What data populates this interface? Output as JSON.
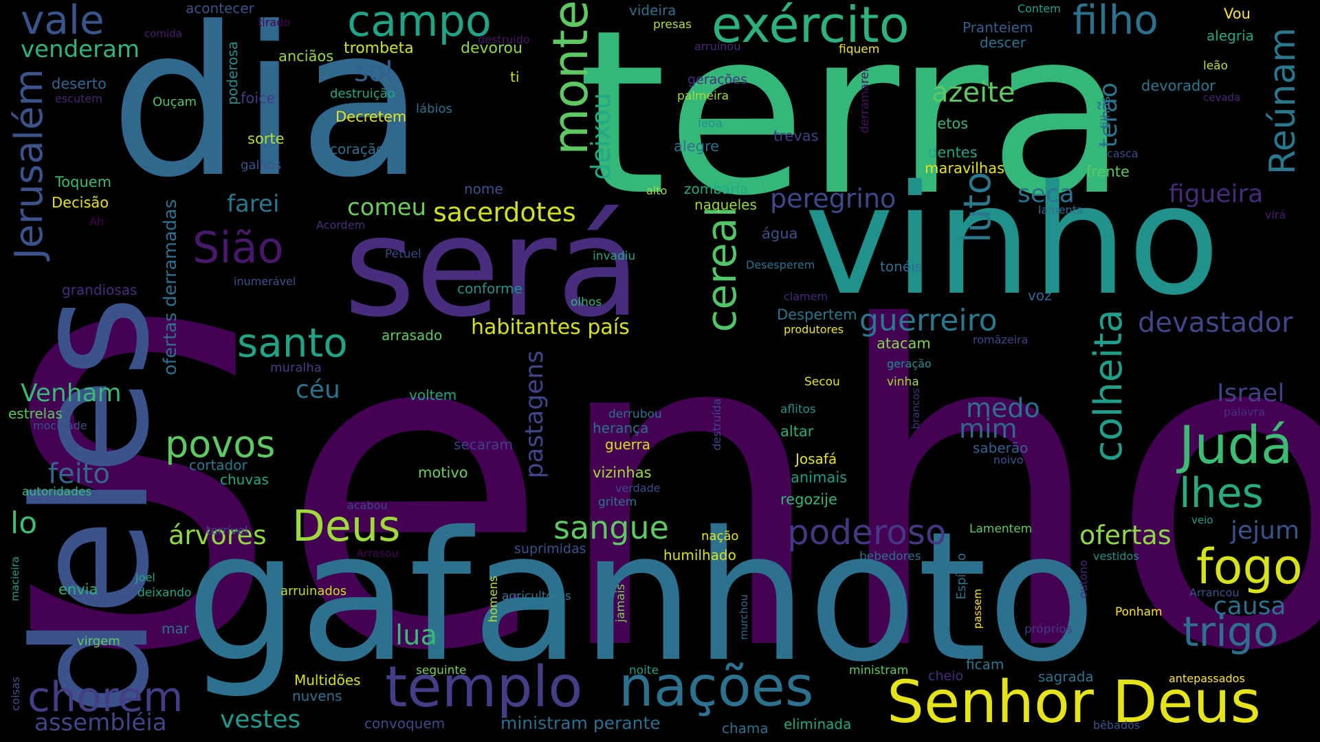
{
  "background": "#000000",
  "palette": {
    "purple": "#440154",
    "indigo": "#472d7b",
    "violet": "#3b528b",
    "blue": "#2c728e",
    "teal": "#21918c",
    "green_teal": "#28ae80",
    "green": "#5ec962",
    "lime": "#addc30",
    "yellow": "#fde725"
  },
  "words": [
    {
      "text": "Senhor",
      "color": "#440154"
    },
    {
      "text": "terra",
      "color": "#35b779"
    },
    {
      "text": "dia",
      "color": "#31688e"
    },
    {
      "text": "gafanhoto",
      "color": "#2c728e"
    },
    {
      "text": "vinho",
      "color": "#21918c"
    },
    {
      "text": "será",
      "color": "#472d7b"
    },
    {
      "text": "deles",
      "color": "#3b528b"
    },
    {
      "text": "Senhor Deus",
      "color": "#e5e419"
    },
    {
      "text": "templo",
      "color": "#433e85"
    },
    {
      "text": "nações",
      "color": "#2c728e"
    },
    {
      "text": "exército",
      "color": "#2db27d"
    },
    {
      "text": "campo",
      "color": "#20a486"
    },
    {
      "text": "monte",
      "color": "#5ec962"
    },
    {
      "text": "filho",
      "color": "#2c728e"
    },
    {
      "text": "vale",
      "color": "#39568c"
    },
    {
      "text": "Jerusalém",
      "color": "#3b528b"
    },
    {
      "text": "Sião",
      "color": "#48186a"
    },
    {
      "text": "santo",
      "color": "#20a486"
    },
    {
      "text": "cereal",
      "color": "#52c569"
    },
    {
      "text": "luto",
      "color": "#2a788e"
    },
    {
      "text": "colheita",
      "color": "#1f9e89"
    },
    {
      "text": "Reúnam",
      "color": "#2a788e"
    },
    {
      "text": "Judá",
      "color": "#3dbc74"
    },
    {
      "text": "lhes",
      "color": "#25ac82"
    },
    {
      "text": "fogo",
      "color": "#d8e219"
    },
    {
      "text": "trigo",
      "color": "#2e6f8e"
    },
    {
      "text": "chorem",
      "color": "#433e85"
    },
    {
      "text": "Deus",
      "color": "#a0da39"
    },
    {
      "text": "poderoso",
      "color": "#453781"
    },
    {
      "text": "guerreiro",
      "color": "#2a788e"
    },
    {
      "text": "sangue",
      "color": "#5ec962"
    },
    {
      "text": "povos",
      "color": "#5ec962"
    },
    {
      "text": "azeite",
      "color": "#5ec962"
    },
    {
      "text": "peregrino",
      "color": "#3e4989"
    },
    {
      "text": "sacerdotes",
      "color": "#d0e11c"
    },
    {
      "text": "devastador",
      "color": "#404688"
    },
    {
      "text": "figueira",
      "color": "#472a7a"
    },
    {
      "text": "Israel",
      "color": "#424186"
    },
    {
      "text": "medo",
      "color": "#2e6e8e"
    },
    {
      "text": "mim",
      "color": "#31688e"
    },
    {
      "text": "ofertas",
      "color": "#8ed645"
    },
    {
      "text": "jejum",
      "color": "#3b528b"
    },
    {
      "text": "causa",
      "color": "#2d708e"
    },
    {
      "text": "farei",
      "color": "#2a788e"
    },
    {
      "text": "comeu",
      "color": "#6ccd5a"
    },
    {
      "text": "seca",
      "color": "#2c738e"
    },
    {
      "text": "Venham",
      "color": "#38b977"
    },
    {
      "text": "feito",
      "color": "#31688e"
    },
    {
      "text": "lo",
      "color": "#3dbc74"
    },
    {
      "text": "árvores",
      "color": "#90d743"
    },
    {
      "text": "sol",
      "color": "#33638d"
    },
    {
      "text": "céu",
      "color": "#2c738e"
    },
    {
      "text": "lua",
      "color": "#3aba76"
    },
    {
      "text": "deixou",
      "color": "#22a884"
    },
    {
      "text": "terão",
      "color": "#2a788e"
    },
    {
      "text": "pastagens",
      "color": "#414487"
    },
    {
      "text": "vestes",
      "color": "#1f9a8a"
    },
    {
      "text": "assembléia",
      "color": "#3f4788"
    },
    {
      "text": "venderam",
      "color": "#2fb47c"
    },
    {
      "text": "habitantes país",
      "color": "#d8e219"
    },
    {
      "text": "ofertas derramadas",
      "color": "#2d708e"
    },
    {
      "text": "acontecer",
      "color": "#3b528b"
    },
    {
      "text": "anciãos",
      "color": "#9bd93c"
    },
    {
      "text": "trombeta",
      "color": "#d2e21b"
    },
    {
      "text": "devorou",
      "color": "#8ed645"
    },
    {
      "text": "deserto",
      "color": "#31688e"
    },
    {
      "text": "poderosa",
      "color": "#21918c"
    },
    {
      "text": "foice",
      "color": "#443983"
    },
    {
      "text": "destruição",
      "color": "#22a884"
    },
    {
      "text": "lábios",
      "color": "#2c728e"
    },
    {
      "text": "Decretem",
      "color": "#e7e419"
    },
    {
      "text": "sorte",
      "color": "#b8de29"
    },
    {
      "text": "coração",
      "color": "#2d708e"
    },
    {
      "text": "galhos",
      "color": "#39568c"
    },
    {
      "text": "Toquem",
      "color": "#3aba76"
    },
    {
      "text": "Decisão",
      "color": "#e5e419"
    },
    {
      "text": "Ouçam",
      "color": "#50c46a"
    },
    {
      "text": "escutem",
      "color": "#482475"
    },
    {
      "text": "comida",
      "color": "#481f70"
    },
    {
      "text": "tirado",
      "color": "#440154"
    },
    {
      "text": "ti",
      "color": "#cde11d"
    },
    {
      "text": "destruído",
      "color": "#471365"
    },
    {
      "text": "videira",
      "color": "#2c728e"
    },
    {
      "text": "presas",
      "color": "#b5de2b"
    },
    {
      "text": "arruinou",
      "color": "#482878"
    },
    {
      "text": "Pranteiem",
      "color": "#35608d"
    },
    {
      "text": "descer",
      "color": "#2c728e"
    },
    {
      "text": "fiquem",
      "color": "#f1e51d"
    },
    {
      "text": "Contem",
      "color": "#1fa088"
    },
    {
      "text": "Vou",
      "color": "#fde725"
    },
    {
      "text": "alegria",
      "color": "#22a884"
    },
    {
      "text": "leão",
      "color": "#c0df25"
    },
    {
      "text": "cevada",
      "color": "#482878"
    },
    {
      "text": "devorador",
      "color": "#2a788e"
    },
    {
      "text": "gerações",
      "color": "#46307e"
    },
    {
      "text": "palmeira",
      "color": "#a5db36"
    },
    {
      "text": "derramarei",
      "color": "#471063"
    },
    {
      "text": "filhas",
      "color": "#31688e"
    },
    {
      "text": "leoa",
      "color": "#21918c"
    },
    {
      "text": "trevas",
      "color": "#433e85"
    },
    {
      "text": "alegre",
      "color": "#2c728e"
    },
    {
      "text": "netos",
      "color": "#35b779"
    },
    {
      "text": "dentes",
      "color": "#20a486"
    },
    {
      "text": "maravilhas",
      "color": "#e5e419"
    },
    {
      "text": "casca",
      "color": "#3e4a89"
    },
    {
      "text": "frente",
      "color": "#5ec962"
    },
    {
      "text": "alto",
      "color": "#a8db34"
    },
    {
      "text": "zombaria",
      "color": "#22a884"
    },
    {
      "text": "naqueles",
      "color": "#9dd93b"
    },
    {
      "text": "nome",
      "color": "#3b528b"
    },
    {
      "text": "lamenta",
      "color": "#2c728e"
    },
    {
      "text": "virá",
      "color": "#481f70"
    },
    {
      "text": "Ah",
      "color": "#440154"
    },
    {
      "text": "Acordem",
      "color": "#472d7b"
    },
    {
      "text": "Petuel",
      "color": "#3e4a89"
    },
    {
      "text": "invadiu",
      "color": "#20a486"
    },
    {
      "text": "água",
      "color": "#3b528b"
    },
    {
      "text": "Desesperem",
      "color": "#2c728e"
    },
    {
      "text": "tonéis",
      "color": "#2e6e8e"
    },
    {
      "text": "inumerável",
      "color": "#3b528b"
    },
    {
      "text": "grandiosas",
      "color": "#472d7b"
    },
    {
      "text": "conforme",
      "color": "#21918c"
    },
    {
      "text": "olhos",
      "color": "#35b779"
    },
    {
      "text": "clamem",
      "color": "#472a7a"
    },
    {
      "text": "voz",
      "color": "#31688e"
    },
    {
      "text": "Despertem",
      "color": "#2a788e"
    },
    {
      "text": "produtores",
      "color": "#f1e51d"
    },
    {
      "text": "atacam",
      "color": "#86d549"
    },
    {
      "text": "romãzeira",
      "color": "#414487"
    },
    {
      "text": "arrasado",
      "color": "#5ec962"
    },
    {
      "text": "muralha",
      "color": "#433e85"
    },
    {
      "text": "geração",
      "color": "#21918c"
    },
    {
      "text": "Secou",
      "color": "#e5e419"
    },
    {
      "text": "vinha",
      "color": "#aadc32"
    },
    {
      "text": "brancos",
      "color": "#46307e"
    },
    {
      "text": "palavra",
      "color": "#46327e"
    },
    {
      "text": "estrelas",
      "color": "#5ec962"
    },
    {
      "text": "mocidade",
      "color": "#3b528b"
    },
    {
      "text": "voltem",
      "color": "#20a486"
    },
    {
      "text": "derrubou",
      "color": "#2c728e"
    },
    {
      "text": "destruída",
      "color": "#3e4989"
    },
    {
      "text": "aflitos",
      "color": "#21918c"
    },
    {
      "text": "herança",
      "color": "#2c728e"
    },
    {
      "text": "secaram",
      "color": "#424186"
    },
    {
      "text": "guerra",
      "color": "#d2e21b"
    },
    {
      "text": "altar",
      "color": "#25ac82"
    },
    {
      "text": "saberão",
      "color": "#35608d"
    },
    {
      "text": "noivo",
      "color": "#3b528b"
    },
    {
      "text": "cortador",
      "color": "#2a788e"
    },
    {
      "text": "chuvas",
      "color": "#22a884"
    },
    {
      "text": "motivo",
      "color": "#6ccd5a"
    },
    {
      "text": "vizinhas",
      "color": "#a5db36"
    },
    {
      "text": "Josafá",
      "color": "#e7e419"
    },
    {
      "text": "animais",
      "color": "#1f9e89"
    },
    {
      "text": "verdade",
      "color": "#3e4a89"
    },
    {
      "text": "autoridades",
      "color": "#3aba76"
    },
    {
      "text": "acabou",
      "color": "#3e4989"
    },
    {
      "text": "gritem",
      "color": "#2a788e"
    },
    {
      "text": "regozije",
      "color": "#35b779"
    },
    {
      "text": "veio",
      "color": "#1f9e89"
    },
    {
      "text": "suprimidas",
      "color": "#3b528b"
    },
    {
      "text": "nação",
      "color": "#e5e419"
    },
    {
      "text": "Lamentem",
      "color": "#5ec962"
    },
    {
      "text": "terrível",
      "color": "#3e4989"
    },
    {
      "text": "Arrasou",
      "color": "#440154"
    },
    {
      "text": "humilhado",
      "color": "#d8e219"
    },
    {
      "text": "bebedores",
      "color": "#2c728e"
    },
    {
      "text": "vestidos",
      "color": "#21918c"
    },
    {
      "text": "envia",
      "color": "#2fb47c"
    },
    {
      "text": "Joel",
      "color": "#22a884"
    },
    {
      "text": "deixando",
      "color": "#20a486"
    },
    {
      "text": "arruinados",
      "color": "#c8e020"
    },
    {
      "text": "agricultores",
      "color": "#2a788e"
    },
    {
      "text": "Espírito",
      "color": "#2c728e"
    },
    {
      "text": "outono",
      "color": "#472a7a"
    },
    {
      "text": "Arrancou",
      "color": "#3b528b"
    },
    {
      "text": "macieira",
      "color": "#1f9e89"
    },
    {
      "text": "mar",
      "color": "#2c728e"
    },
    {
      "text": "homens",
      "color": "#b8de29"
    },
    {
      "text": "jamais",
      "color": "#7ad151"
    },
    {
      "text": "murchou",
      "color": "#31688e"
    },
    {
      "text": "passem",
      "color": "#fde725"
    },
    {
      "text": "Ponham",
      "color": "#fde725"
    },
    {
      "text": "próprios",
      "color": "#453882"
    },
    {
      "text": "virgem",
      "color": "#5ec962"
    },
    {
      "text": "coisas",
      "color": "#3b528b"
    },
    {
      "text": "Multidões",
      "color": "#d8e219"
    },
    {
      "text": "nuvens",
      "color": "#2c728e"
    },
    {
      "text": "seguinte",
      "color": "#7ad151"
    },
    {
      "text": "noite",
      "color": "#1f9e89"
    },
    {
      "text": "ministram",
      "color": "#5ec962"
    },
    {
      "text": "cheio",
      "color": "#472d7b"
    },
    {
      "text": "ficam",
      "color": "#2a788e"
    },
    {
      "text": "sagrada",
      "color": "#2c728e"
    },
    {
      "text": "antepassados",
      "color": "#fde725"
    },
    {
      "text": "convoquem",
      "color": "#3e4989"
    },
    {
      "text": "ministram perante",
      "color": "#2e6e8e"
    },
    {
      "text": "chama",
      "color": "#2c728e"
    },
    {
      "text": "eliminada",
      "color": "#22a884"
    },
    {
      "text": "bêbados",
      "color": "#39568c"
    }
  ]
}
